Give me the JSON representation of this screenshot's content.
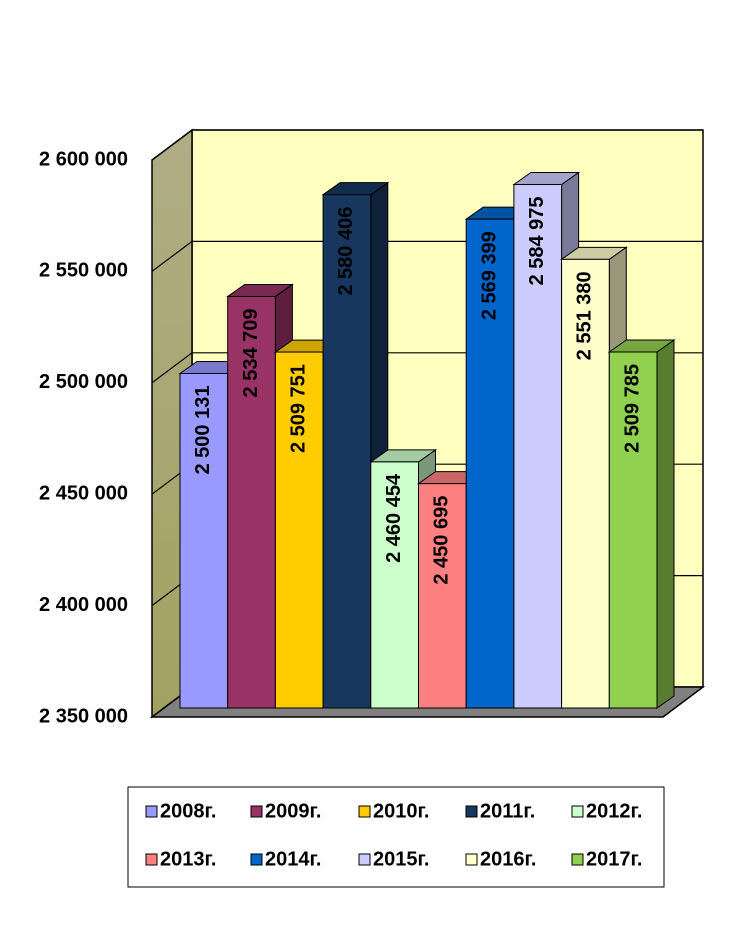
{
  "chart_data": {
    "type": "bar3d",
    "series": [
      {
        "name": "2008г.",
        "color": "#9999ff",
        "values": [
          2500131
        ],
        "value_labels": [
          "2 500 131"
        ]
      },
      {
        "name": "2009г.",
        "color": "#993366",
        "values": [
          2534709
        ],
        "value_labels": [
          "2 534 709"
        ]
      },
      {
        "name": "2010г.",
        "color": "#ffcc00",
        "values": [
          2509751
        ],
        "value_labels": [
          "2 509 751"
        ]
      },
      {
        "name": "2011г.",
        "color": "#17375e",
        "values": [
          2580406
        ],
        "value_labels": [
          "2 580 406"
        ]
      },
      {
        "name": "2012г.",
        "color": "#ccffcc",
        "values": [
          2460454
        ],
        "value_labels": [
          "2 460 454"
        ]
      },
      {
        "name": "2013г.",
        "color": "#ff8080",
        "values": [
          2450695
        ],
        "value_labels": [
          "2 450 695"
        ]
      },
      {
        "name": "2014г.",
        "color": "#0066cc",
        "values": [
          2569399
        ],
        "value_labels": [
          "2 569 399"
        ]
      },
      {
        "name": "2015г.",
        "color": "#ccccff",
        "values": [
          2584975
        ],
        "value_labels": [
          "2 584 975"
        ]
      },
      {
        "name": "2016г.",
        "color": "#ffffcc",
        "values": [
          2551380
        ],
        "value_labels": [
          "2 551 380"
        ]
      },
      {
        "name": "2017г.",
        "color": "#92d050",
        "values": [
          2509785
        ],
        "value_labels": [
          "2 509 785"
        ]
      }
    ],
    "ylim": [
      2350000,
      2600000
    ],
    "yticks": [
      {
        "value": 2350000,
        "label": "2 350 000"
      },
      {
        "value": 2400000,
        "label": "2 400 000"
      },
      {
        "value": 2450000,
        "label": "2 450 000"
      },
      {
        "value": 2500000,
        "label": "2 500 000"
      },
      {
        "value": 2550000,
        "label": "2 550 000"
      },
      {
        "value": 2600000,
        "label": "2 600 000"
      }
    ],
    "grid": true,
    "legend": "bottom"
  }
}
